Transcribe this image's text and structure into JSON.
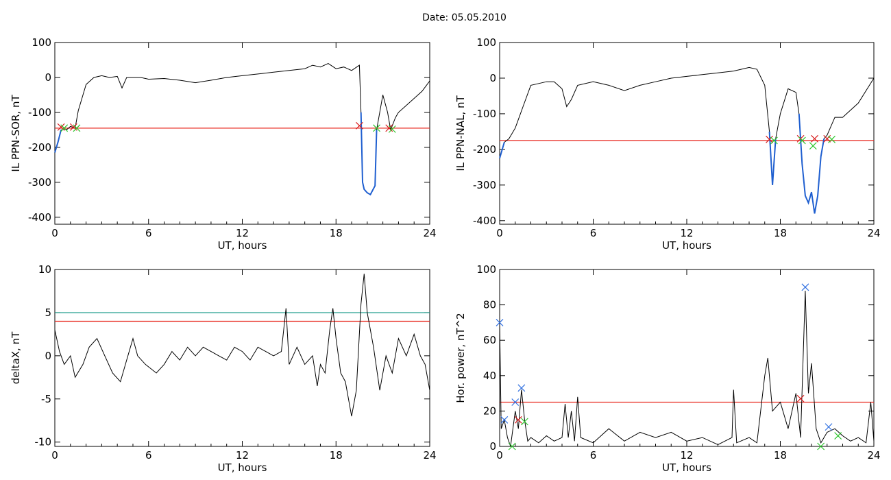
{
  "date_label": "Date:  05.05.2010",
  "colors": {
    "data": "#000000",
    "threshold_red": "#e8271e",
    "threshold_teal": "#1a9a8a",
    "segment_blue": "#1f5fd0",
    "cyan": "#17a8b8",
    "marker_red": "#d81e1e",
    "marker_green": "#2cc52c",
    "marker_blue": "#2f6fe0"
  },
  "chart_data": [
    {
      "type": "line",
      "ylabel": "IL PPN-SOR, nT",
      "xlabel": "UT, hours",
      "xlim": [
        0,
        24
      ],
      "ylim": [
        -420,
        100
      ],
      "xticks": [
        0,
        6,
        12,
        18,
        24
      ],
      "yticks": [
        -400,
        -300,
        -200,
        -100,
        0,
        100
      ],
      "threshold": -145,
      "series": [
        {
          "values": [
            [
              0,
              -215
            ],
            [
              0.2,
              -185
            ],
            [
              0.4,
              -150
            ],
            [
              0.8,
              -148
            ],
            [
              1.0,
              -140
            ],
            [
              1.3,
              -145
            ],
            [
              1.5,
              -95
            ],
            [
              2.0,
              -20
            ],
            [
              2.5,
              0
            ],
            [
              3.0,
              5
            ],
            [
              3.5,
              0
            ],
            [
              4.0,
              3
            ],
            [
              4.3,
              -30
            ],
            [
              4.6,
              0
            ],
            [
              5.5,
              0
            ],
            [
              6.0,
              -5
            ],
            [
              7.0,
              -3
            ],
            [
              8.0,
              -8
            ],
            [
              9.0,
              -15
            ],
            [
              10.0,
              -8
            ],
            [
              11.0,
              0
            ],
            [
              12.0,
              5
            ],
            [
              13.0,
              10
            ],
            [
              14.0,
              15
            ],
            [
              15.0,
              20
            ],
            [
              16.0,
              25
            ],
            [
              16.5,
              35
            ],
            [
              17.0,
              30
            ],
            [
              17.5,
              40
            ],
            [
              18.0,
              25
            ],
            [
              18.5,
              30
            ],
            [
              19.0,
              20
            ],
            [
              19.5,
              35
            ],
            [
              19.6,
              -100
            ],
            [
              19.7,
              -300
            ],
            [
              19.8,
              -320
            ],
            [
              20.0,
              -330
            ],
            [
              20.2,
              -335
            ],
            [
              20.5,
              -310
            ],
            [
              20.6,
              -150
            ],
            [
              21.0,
              -50
            ],
            [
              21.3,
              -100
            ],
            [
              21.5,
              -150
            ],
            [
              21.8,
              -115
            ],
            [
              22.0,
              -100
            ],
            [
              22.5,
              -80
            ],
            [
              23.0,
              -60
            ],
            [
              23.5,
              -40
            ],
            [
              24.0,
              -10
            ]
          ]
        }
      ],
      "segments": [
        [
          0,
          0.5
        ],
        [
          19.6,
          20.6
        ],
        [
          21.4,
          21.6
        ]
      ],
      "markers": [
        {
          "x": 0.4,
          "y": -142,
          "color": "red"
        },
        {
          "x": 0.6,
          "y": -145,
          "color": "green"
        },
        {
          "x": 1.2,
          "y": -142,
          "color": "red"
        },
        {
          "x": 1.4,
          "y": -145,
          "color": "green"
        },
        {
          "x": 19.5,
          "y": -138,
          "color": "red"
        },
        {
          "x": 20.6,
          "y": -145,
          "color": "green"
        },
        {
          "x": 21.4,
          "y": -145,
          "color": "red"
        },
        {
          "x": 21.6,
          "y": -148,
          "color": "green"
        }
      ]
    },
    {
      "type": "line",
      "ylabel": "IL PPN-NAL, nT",
      "xlabel": "UT, hours",
      "xlim": [
        0,
        24
      ],
      "ylim": [
        -410,
        100
      ],
      "xticks": [
        0,
        6,
        12,
        18,
        24
      ],
      "yticks": [
        -400,
        -300,
        -200,
        -100,
        0,
        100
      ],
      "threshold": -175,
      "series": [
        {
          "values": [
            [
              0,
              -225
            ],
            [
              0.3,
              -180
            ],
            [
              0.6,
              -170
            ],
            [
              1.0,
              -140
            ],
            [
              1.5,
              -80
            ],
            [
              2.0,
              -20
            ],
            [
              2.5,
              -15
            ],
            [
              3.0,
              -10
            ],
            [
              3.5,
              -10
            ],
            [
              4.0,
              -30
            ],
            [
              4.3,
              -80
            ],
            [
              4.6,
              -60
            ],
            [
              5.0,
              -20
            ],
            [
              6.0,
              -10
            ],
            [
              7.0,
              -20
            ],
            [
              8.0,
              -35
            ],
            [
              9.0,
              -20
            ],
            [
              10.0,
              -10
            ],
            [
              11.0,
              0
            ],
            [
              12.0,
              5
            ],
            [
              13.0,
              10
            ],
            [
              14.0,
              15
            ],
            [
              15.0,
              20
            ],
            [
              16.0,
              30
            ],
            [
              16.5,
              25
            ],
            [
              17.0,
              -20
            ],
            [
              17.3,
              -150
            ],
            [
              17.5,
              -300
            ],
            [
              17.7,
              -170
            ],
            [
              18.0,
              -100
            ],
            [
              18.5,
              -30
            ],
            [
              19.0,
              -40
            ],
            [
              19.2,
              -100
            ],
            [
              19.4,
              -240
            ],
            [
              19.6,
              -330
            ],
            [
              19.8,
              -350
            ],
            [
              20.0,
              -320
            ],
            [
              20.2,
              -380
            ],
            [
              20.4,
              -330
            ],
            [
              20.6,
              -220
            ],
            [
              20.8,
              -170
            ],
            [
              21.0,
              -160
            ],
            [
              21.2,
              -140
            ],
            [
              21.5,
              -110
            ],
            [
              22.0,
              -110
            ],
            [
              23.0,
              -70
            ],
            [
              24.0,
              0
            ]
          ]
        }
      ],
      "segments": [
        [
          0,
          0.4
        ],
        [
          17.3,
          17.7
        ],
        [
          19.2,
          20.8
        ]
      ],
      "markers": [
        {
          "x": 17.3,
          "y": -172,
          "color": "red"
        },
        {
          "x": 17.6,
          "y": -175,
          "color": "green"
        },
        {
          "x": 19.3,
          "y": -170,
          "color": "red"
        },
        {
          "x": 19.4,
          "y": -175,
          "color": "green"
        },
        {
          "x": 20.2,
          "y": -170,
          "color": "red"
        },
        {
          "x": 20.1,
          "y": -190,
          "color": "green"
        },
        {
          "x": 21.0,
          "y": -170,
          "color": "red"
        },
        {
          "x": 21.3,
          "y": -172,
          "color": "green"
        }
      ]
    },
    {
      "type": "line",
      "ylabel": "deltaX, nT",
      "xlabel": "UT, hours",
      "xlim": [
        0,
        24
      ],
      "ylim": [
        -10.5,
        10
      ],
      "xticks": [
        0,
        6,
        12,
        18,
        24
      ],
      "yticks": [
        -10,
        -5,
        0,
        5,
        10
      ],
      "threshold": 4,
      "threshold2": 5,
      "series": [
        {
          "values": [
            [
              0,
              3
            ],
            [
              0.3,
              0.5
            ],
            [
              0.6,
              -1
            ],
            [
              1.0,
              0
            ],
            [
              1.3,
              -2.5
            ],
            [
              1.8,
              -1
            ],
            [
              2.2,
              1
            ],
            [
              2.7,
              2
            ],
            [
              3.2,
              0
            ],
            [
              3.7,
              -2
            ],
            [
              4.2,
              -3
            ],
            [
              4.6,
              -0.5
            ],
            [
              5.0,
              2
            ],
            [
              5.3,
              0
            ],
            [
              5.8,
              -1
            ],
            [
              6.5,
              -2
            ],
            [
              7.0,
              -1
            ],
            [
              7.5,
              0.5
            ],
            [
              8.0,
              -0.5
            ],
            [
              8.5,
              1
            ],
            [
              9.0,
              0
            ],
            [
              9.5,
              1
            ],
            [
              10.0,
              0.5
            ],
            [
              10.5,
              0
            ],
            [
              11.0,
              -0.5
            ],
            [
              11.5,
              1
            ],
            [
              12.0,
              0.5
            ],
            [
              12.5,
              -0.5
            ],
            [
              13.0,
              1
            ],
            [
              13.5,
              0.5
            ],
            [
              14.0,
              0
            ],
            [
              14.5,
              0.5
            ],
            [
              14.8,
              5.5
            ],
            [
              15.0,
              -1
            ],
            [
              15.5,
              1
            ],
            [
              16.0,
              -1
            ],
            [
              16.5,
              0
            ],
            [
              16.8,
              -3.5
            ],
            [
              17.0,
              -1
            ],
            [
              17.3,
              -2
            ],
            [
              17.6,
              3
            ],
            [
              17.8,
              5.5
            ],
            [
              18.0,
              2
            ],
            [
              18.3,
              -2
            ],
            [
              18.6,
              -3
            ],
            [
              19.0,
              -7
            ],
            [
              19.3,
              -4
            ],
            [
              19.6,
              6
            ],
            [
              19.8,
              9.5
            ],
            [
              20.0,
              5
            ],
            [
              20.4,
              1
            ],
            [
              20.8,
              -4
            ],
            [
              21.2,
              0
            ],
            [
              21.6,
              -2
            ],
            [
              22.0,
              2
            ],
            [
              22.5,
              0
            ],
            [
              23.0,
              2.5
            ],
            [
              23.4,
              0
            ],
            [
              23.7,
              -1
            ],
            [
              24.0,
              -4
            ]
          ]
        }
      ]
    },
    {
      "type": "line",
      "ylabel": "Hor. power, nT^2",
      "xlabel": "UT, hours",
      "xlim": [
        0,
        24
      ],
      "ylim": [
        0,
        100
      ],
      "xticks": [
        0,
        6,
        12,
        18,
        24
      ],
      "yticks": [
        0,
        20,
        40,
        60,
        80,
        100
      ],
      "threshold": 25,
      "series": [
        {
          "values": [
            [
              0,
              70
            ],
            [
              0.1,
              10
            ],
            [
              0.3,
              15
            ],
            [
              0.5,
              5
            ],
            [
              0.7,
              0
            ],
            [
              1.0,
              20
            ],
            [
              1.2,
              10
            ],
            [
              1.4,
              32
            ],
            [
              1.6,
              15
            ],
            [
              1.8,
              3
            ],
            [
              2.0,
              5
            ],
            [
              2.5,
              2
            ],
            [
              3.0,
              6
            ],
            [
              3.5,
              3
            ],
            [
              4.0,
              5
            ],
            [
              4.2,
              24
            ],
            [
              4.4,
              5
            ],
            [
              4.6,
              20
            ],
            [
              4.8,
              3
            ],
            [
              5.0,
              28
            ],
            [
              5.2,
              5
            ],
            [
              6.0,
              2
            ],
            [
              7.0,
              10
            ],
            [
              8.0,
              3
            ],
            [
              9.0,
              8
            ],
            [
              10.0,
              5
            ],
            [
              11.0,
              8
            ],
            [
              12.0,
              3
            ],
            [
              13.0,
              5
            ],
            [
              14.0,
              1
            ],
            [
              14.9,
              5
            ],
            [
              15.0,
              32
            ],
            [
              15.2,
              2
            ],
            [
              16.0,
              5
            ],
            [
              16.5,
              2
            ],
            [
              17.0,
              40
            ],
            [
              17.2,
              50
            ],
            [
              17.5,
              20
            ],
            [
              18.0,
              25
            ],
            [
              18.5,
              10
            ],
            [
              19.0,
              30
            ],
            [
              19.3,
              5
            ],
            [
              19.6,
              88
            ],
            [
              19.8,
              30
            ],
            [
              20.0,
              47
            ],
            [
              20.3,
              10
            ],
            [
              20.6,
              2
            ],
            [
              21.0,
              8
            ],
            [
              21.5,
              10
            ],
            [
              22.0,
              6
            ],
            [
              22.5,
              3
            ],
            [
              23.0,
              5
            ],
            [
              23.5,
              2
            ],
            [
              23.8,
              25
            ],
            [
              24.0,
              3
            ]
          ]
        }
      ],
      "markers": [
        {
          "x": 0.0,
          "y": 70,
          "color": "blue"
        },
        {
          "x": 0.3,
          "y": 15,
          "color": "blue"
        },
        {
          "x": 0.8,
          "y": 0,
          "color": "green"
        },
        {
          "x": 1.0,
          "y": 25,
          "color": "blue"
        },
        {
          "x": 1.2,
          "y": 15,
          "color": "red"
        },
        {
          "x": 1.4,
          "y": 33,
          "color": "blue"
        },
        {
          "x": 1.6,
          "y": 14,
          "color": "green"
        },
        {
          "x": 19.3,
          "y": 27,
          "color": "red"
        },
        {
          "x": 19.6,
          "y": 90,
          "color": "blue"
        },
        {
          "x": 20.6,
          "y": 0,
          "color": "green"
        },
        {
          "x": 21.1,
          "y": 11,
          "color": "blue"
        },
        {
          "x": 21.7,
          "y": 6,
          "color": "green"
        }
      ]
    }
  ]
}
